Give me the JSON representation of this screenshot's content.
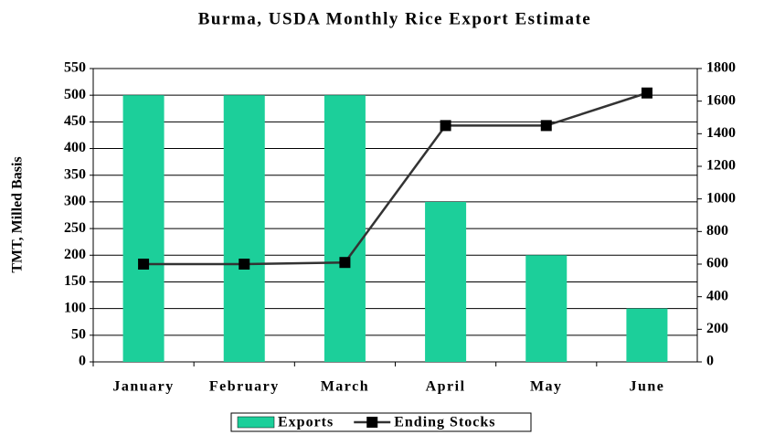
{
  "chart_data": {
    "type": "bar",
    "title": "Burma, USDA Monthly Rice Export Estimate",
    "y_label": "TMT, Milled Basis",
    "categories": [
      "January",
      "February",
      "March",
      "April",
      "May",
      "June"
    ],
    "series": [
      {
        "name": "Exports",
        "type": "bar",
        "color": "#1ccf9a",
        "values": [
          500,
          500,
          500,
          300,
          200,
          100
        ]
      },
      {
        "name": "Ending Stocks",
        "type": "line",
        "axis": "y2",
        "color": "#333333",
        "values": [
          600,
          600,
          610,
          1450,
          1450,
          1650
        ]
      }
    ],
    "ylim": [
      0,
      550
    ],
    "yticks": [
      0,
      50,
      100,
      150,
      200,
      250,
      300,
      350,
      400,
      450,
      500,
      550
    ],
    "y2lim": [
      0,
      1800
    ],
    "y2ticks": [
      0,
      200,
      400,
      600,
      800,
      1000,
      1200,
      1400,
      1600,
      1800
    ],
    "grid": true,
    "legend": "bottom"
  }
}
